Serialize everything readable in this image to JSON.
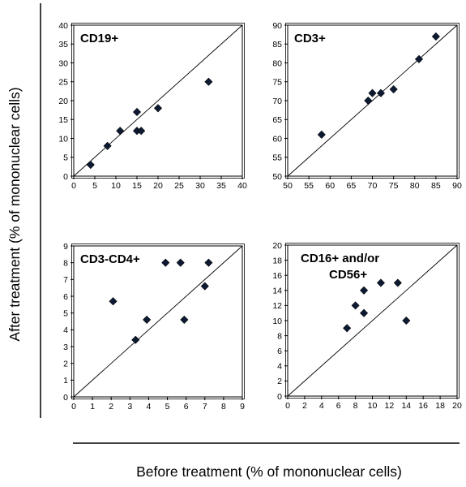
{
  "figure": {
    "ylabel": "After treatment  (% of mononuclear cells)",
    "xlabel": "Before treatment (% of mononuclear cells)"
  },
  "chart_data": [
    {
      "type": "scatter",
      "title": "CD19+",
      "title_lines": [
        "CD19+"
      ],
      "xlim": [
        0,
        40
      ],
      "ylim": [
        0,
        40
      ],
      "xticks": [
        0,
        5,
        10,
        15,
        20,
        25,
        30,
        35,
        40
      ],
      "yticks": [
        0,
        5,
        10,
        15,
        20,
        25,
        30,
        35,
        40
      ],
      "identity_line": true,
      "x": [
        4,
        8,
        11,
        15,
        15,
        16,
        20,
        32
      ],
      "y": [
        3,
        8,
        12,
        17,
        12,
        12,
        18,
        25
      ]
    },
    {
      "type": "scatter",
      "title": "CD3+",
      "title_lines": [
        "CD3+"
      ],
      "xlim": [
        50,
        90
      ],
      "ylim": [
        50,
        90
      ],
      "xticks": [
        50,
        55,
        60,
        65,
        70,
        75,
        80,
        85,
        90
      ],
      "yticks": [
        50,
        55,
        60,
        65,
        70,
        75,
        80,
        85,
        90
      ],
      "identity_line": true,
      "x": [
        58,
        69,
        70,
        72,
        75,
        81,
        85
      ],
      "y": [
        61,
        70,
        72,
        72,
        73,
        81,
        87
      ]
    },
    {
      "type": "scatter",
      "title": "CD3-CD4+",
      "title_lines": [
        "CD3-CD4+"
      ],
      "xlim": [
        0,
        9
      ],
      "ylim": [
        0,
        9
      ],
      "xticks": [
        0,
        1,
        2,
        3,
        4,
        5,
        6,
        7,
        8,
        9
      ],
      "yticks": [
        0,
        1,
        2,
        3,
        4,
        5,
        6,
        7,
        8,
        9
      ],
      "identity_line": true,
      "x": [
        2.1,
        3.3,
        3.9,
        4.9,
        5.7,
        5.9,
        7.0,
        7.2
      ],
      "y": [
        5.7,
        3.4,
        4.6,
        8.0,
        8.0,
        4.6,
        6.6,
        8.0
      ]
    },
    {
      "type": "scatter",
      "title": "CD16+ and/or CD56+",
      "title_lines": [
        "CD16+ and/or",
        "CD56+"
      ],
      "xlim": [
        0,
        20
      ],
      "ylim": [
        0,
        20
      ],
      "xticks": [
        0,
        2,
        4,
        6,
        8,
        10,
        12,
        14,
        16,
        18,
        20
      ],
      "yticks": [
        0,
        2,
        4,
        6,
        8,
        10,
        12,
        14,
        16,
        18,
        20
      ],
      "identity_line": true,
      "x": [
        7,
        8,
        9,
        9,
        11,
        13,
        14
      ],
      "y": [
        9,
        12,
        14,
        11,
        15,
        15,
        10
      ]
    }
  ]
}
